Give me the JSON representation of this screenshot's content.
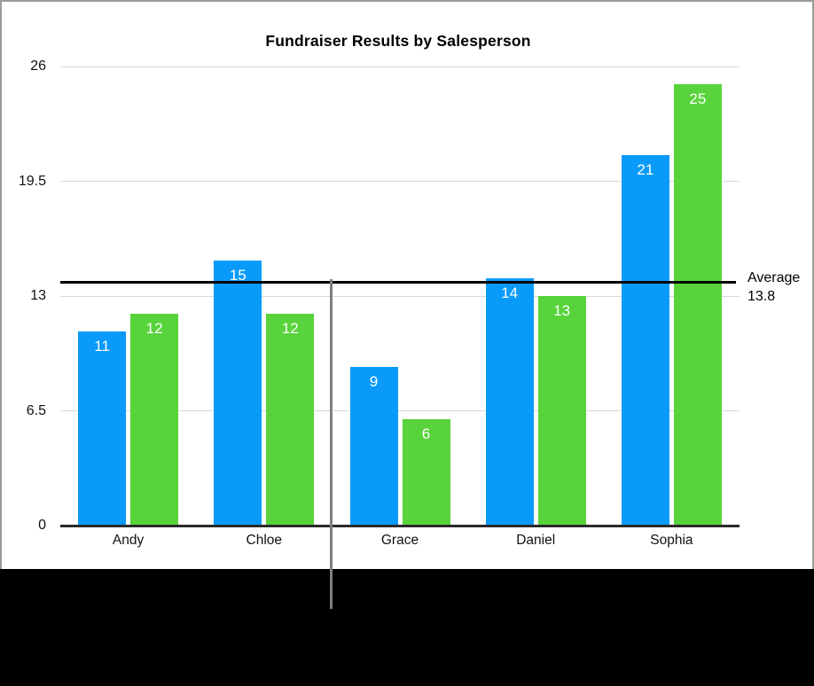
{
  "chart_data": {
    "type": "bar",
    "title": "Fundraiser Results by Salesperson",
    "categories": [
      "Andy",
      "Chloe",
      "Grace",
      "Daniel",
      "Sophia"
    ],
    "series": [
      {
        "color_name": "blue",
        "color": "#0a9bfa",
        "values": [
          11,
          15,
          9,
          14,
          21
        ]
      },
      {
        "color_name": "green",
        "color": "#58d33b",
        "values": [
          12,
          12,
          6,
          13,
          25
        ]
      }
    ],
    "bar_value_labels": [
      [
        "11",
        "15",
        "9",
        "14",
        "21"
      ],
      [
        "12",
        "12",
        "6",
        "13",
        "25"
      ]
    ],
    "yticks": [
      {
        "label": "0",
        "value": 0
      },
      {
        "label": "6.5",
        "value": 6.5
      },
      {
        "label": "13",
        "value": 13
      },
      {
        "label": "19.5",
        "value": 19.5
      },
      {
        "label": "26",
        "value": 26
      }
    ],
    "ylim": [
      0,
      26
    ],
    "grid": true,
    "legend": false,
    "xlabel": "",
    "ylabel": "",
    "annotations": {
      "average_line": {
        "value": 13.8,
        "label_lines": [
          "Average",
          "13.8"
        ],
        "color": "#000000"
      },
      "vertical_divider_line": {
        "between_categories": [
          "Chloe",
          "Grace"
        ],
        "color": "#808080"
      }
    }
  }
}
